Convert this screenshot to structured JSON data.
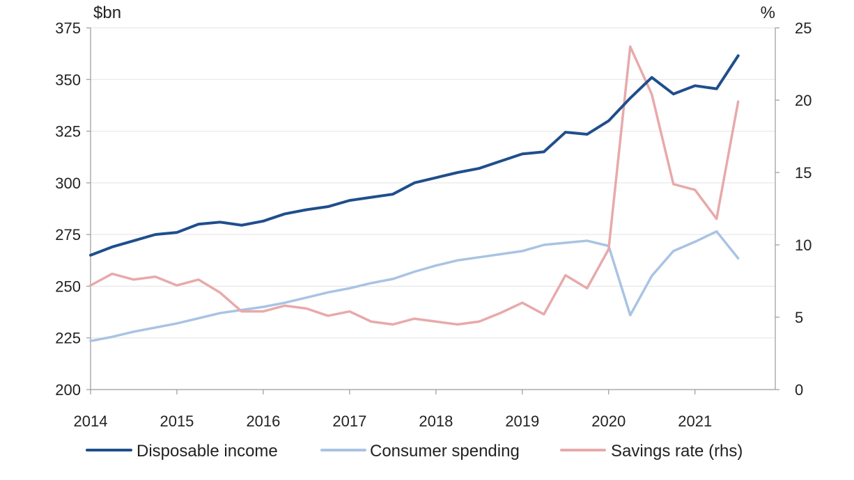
{
  "chart_data": {
    "type": "line",
    "left_axis": {
      "unit_label": "$bn",
      "ylim": [
        200,
        375
      ],
      "ticks": [
        200,
        225,
        250,
        275,
        300,
        325,
        350,
        375
      ]
    },
    "right_axis": {
      "unit_label": "%",
      "ylim": [
        0,
        25
      ],
      "ticks": [
        0,
        5,
        10,
        15,
        20,
        25
      ]
    },
    "x_axis": {
      "xlim": [
        2014,
        2021.93
      ],
      "ticks": [
        2014,
        2015,
        2016,
        2017,
        2018,
        2019,
        2020,
        2021
      ],
      "tick_labels": [
        "2014",
        "2015",
        "2016",
        "2017",
        "2018",
        "2019",
        "2020",
        "2021"
      ]
    },
    "x": [
      2014.0,
      2014.25,
      2014.5,
      2014.75,
      2015.0,
      2015.25,
      2015.5,
      2015.75,
      2016.0,
      2016.25,
      2016.5,
      2016.75,
      2017.0,
      2017.25,
      2017.5,
      2017.75,
      2018.0,
      2018.25,
      2018.5,
      2018.75,
      2019.0,
      2019.25,
      2019.5,
      2019.75,
      2020.0,
      2020.25,
      2020.5,
      2020.75,
      2021.0,
      2021.25,
      2021.5
    ],
    "series": [
      {
        "name": "Disposable income",
        "axis": "left",
        "color": "#1f4e8c",
        "values": [
          265,
          269,
          272,
          275,
          276,
          280,
          281,
          279.5,
          281.5,
          285,
          287,
          288.5,
          291.5,
          293,
          294.5,
          300,
          302.5,
          305,
          307,
          310.5,
          314,
          315,
          324.5,
          323.5,
          330,
          341,
          351,
          343,
          347,
          345.5,
          361.5
        ]
      },
      {
        "name": "Consumer spending",
        "axis": "left",
        "color": "#a9c3e3",
        "values": [
          223.5,
          225.5,
          228,
          230,
          232,
          234.5,
          237,
          238.5,
          240,
          242,
          244.5,
          247,
          249,
          251.5,
          253.5,
          257,
          260,
          262.5,
          264,
          265.5,
          267,
          270,
          271,
          272,
          269.5,
          236,
          255,
          267,
          271.5,
          276.5,
          263.5
        ]
      },
      {
        "name": "Savings rate (rhs)",
        "axis": "right",
        "color": "#e8a9aa",
        "values": [
          7.2,
          8.0,
          7.6,
          7.8,
          7.2,
          7.6,
          6.7,
          5.4,
          5.4,
          5.8,
          5.6,
          5.1,
          5.4,
          4.7,
          4.5,
          4.9,
          4.7,
          4.5,
          4.7,
          5.3,
          6.0,
          5.2,
          7.9,
          7.0,
          9.7,
          23.7,
          20.4,
          14.2,
          13.8,
          11.8,
          19.9
        ]
      }
    ],
    "legend": {
      "placement": "bottom",
      "entries": [
        "Disposable income",
        "Consumer spending",
        "Savings rate (rhs)"
      ]
    },
    "grid": true
  }
}
